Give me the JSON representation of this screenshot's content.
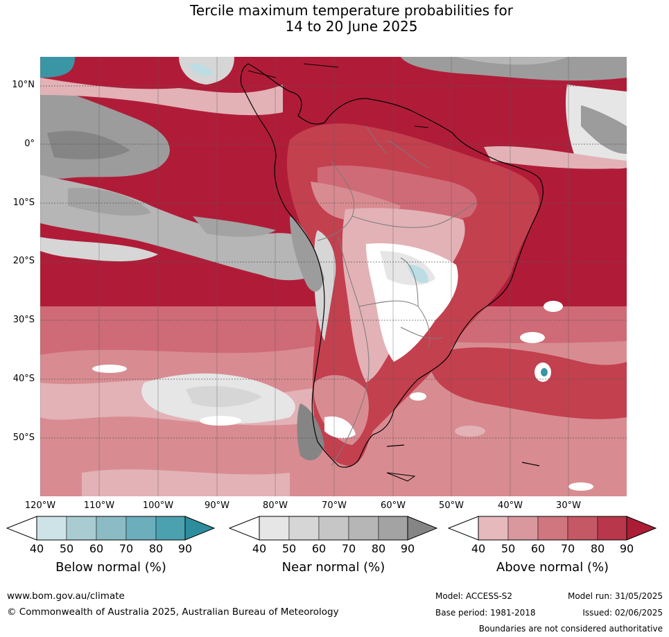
{
  "title_line1": "Tercile maximum temperature probabilities for",
  "title_line2": "14 to 20 June 2025",
  "map": {
    "latitude_labels": [
      "10°N",
      "0°",
      "10°S",
      "20°S",
      "30°S",
      "40°S",
      "50°S"
    ],
    "longitude_labels": [
      "120°W",
      "110°W",
      "100°W",
      "90°W",
      "80°W",
      "70°W",
      "60°W",
      "50°W",
      "40°W",
      "30°W"
    ],
    "dominant_category": "Above normal",
    "colors": {
      "ocean_above_90": "#b01c38",
      "above_80": "#c3404f",
      "above_70": "#cf6b76",
      "above_60": "#d88c92",
      "above_50": "#e2b2b6",
      "near_normal_gray": "#9c9c9c",
      "near_light_gray": "#d6d6d6",
      "below_teal": "#3a95a4",
      "below_light": "#bcdde3",
      "coastline": "#000000",
      "borders": "#7a7a7a"
    }
  },
  "colorbars": [
    {
      "name": "Below normal (%)",
      "ticks": [
        "40",
        "50",
        "60",
        "70",
        "80",
        "90"
      ],
      "colors": [
        "#cde3e8",
        "#a9ccd2",
        "#8bbcc5",
        "#6caebc",
        "#4ba1b0",
        "#2d8d9d"
      ]
    },
    {
      "name": "Near normal (%)",
      "ticks": [
        "40",
        "50",
        "60",
        "70",
        "80",
        "90"
      ],
      "colors": [
        "#e6e6e6",
        "#d6d6d6",
        "#c6c6c6",
        "#b6b6b6",
        "#a3a3a3",
        "#858585"
      ]
    },
    {
      "name": "Above normal (%)",
      "ticks": [
        "40",
        "50",
        "60",
        "70",
        "80",
        "90"
      ],
      "colors": [
        "#e6b9bd",
        "#d9989e",
        "#cf767f",
        "#c55865",
        "#b9374b",
        "#ab1c35"
      ]
    }
  ],
  "footer": {
    "website": "www.bom.gov.au/climate",
    "copyright": "© Commonwealth of Australia 2025, Australian Bureau of Meteorology",
    "model": "Model: ACCESS-S2",
    "model_run": "Model run: 31/05/2025",
    "base_period": "Base period: 1981-2018",
    "issued": "Issued: 02/06/2025",
    "disclaimer": "Boundaries are not considered authoritative"
  }
}
